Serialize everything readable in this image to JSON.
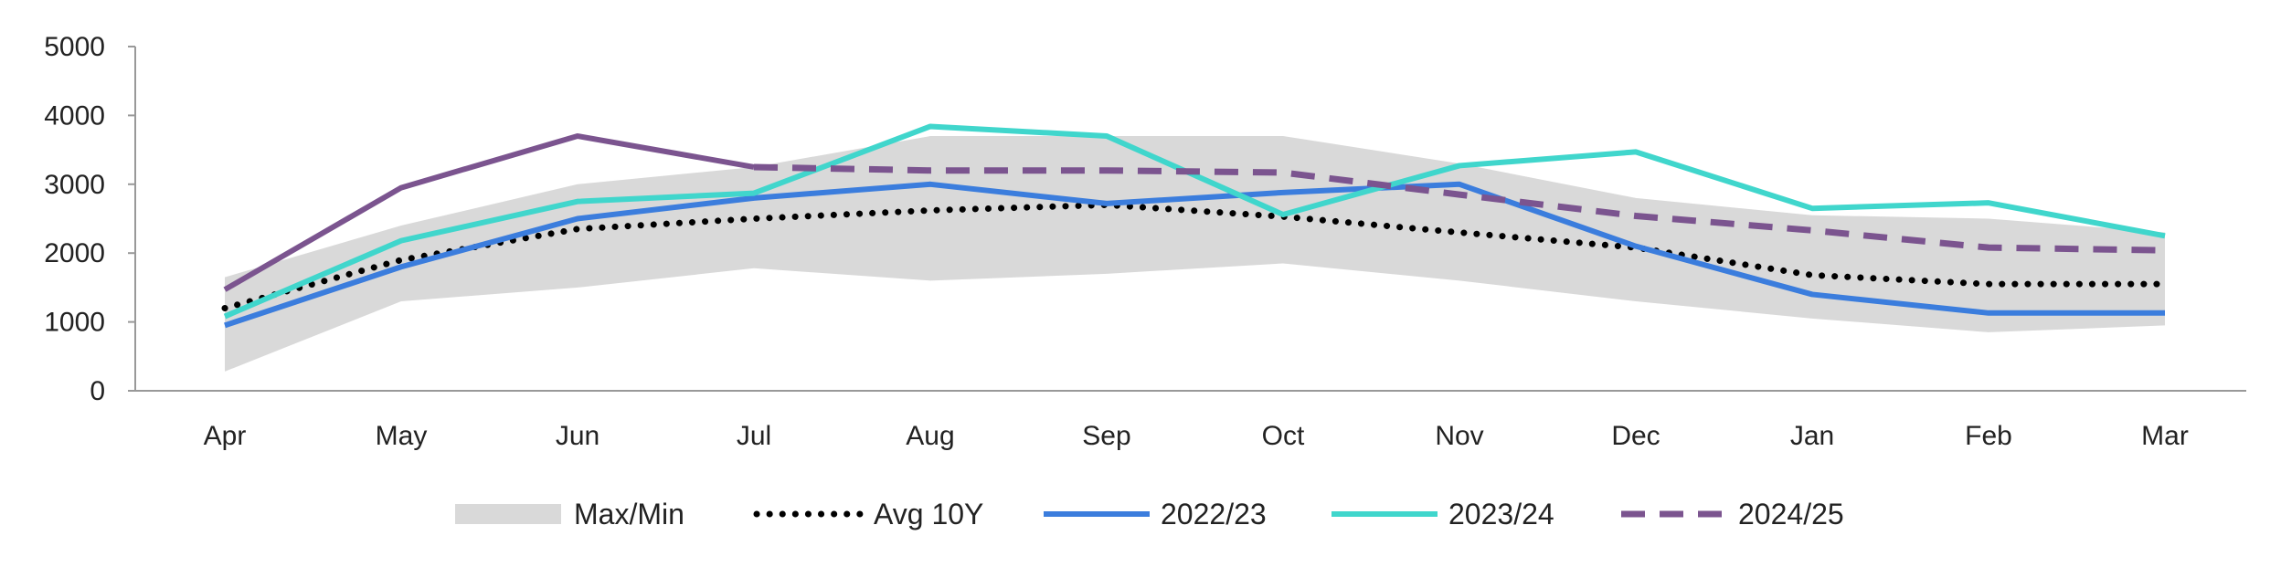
{
  "chart_data": {
    "type": "line",
    "categories": [
      "Apr",
      "May",
      "Jun",
      "Jul",
      "Aug",
      "Sep",
      "Oct",
      "Nov",
      "Dec",
      "Jan",
      "Feb",
      "Mar"
    ],
    "ylim": [
      0,
      5000
    ],
    "yticks": [
      0,
      1000,
      2000,
      3000,
      4000,
      5000
    ],
    "band": {
      "name": "Max/Min",
      "color": "#d9d9d9",
      "max": [
        1650,
        2400,
        3000,
        3250,
        3700,
        3700,
        3700,
        3300,
        2800,
        2550,
        2500,
        2300
      ],
      "min": [
        280,
        1300,
        1500,
        1780,
        1600,
        1700,
        1850,
        1600,
        1300,
        1050,
        850,
        950
      ]
    },
    "series": [
      {
        "name": "Avg 10Y",
        "color": "#000000",
        "style": "dotted",
        "values": [
          1200,
          1900,
          2350,
          2500,
          2620,
          2700,
          2530,
          2300,
          2080,
          1680,
          1550,
          1550
        ]
      },
      {
        "name": "2022/23",
        "color": "#3b7ddd",
        "style": "solid",
        "values": [
          950,
          1800,
          2500,
          2800,
          3000,
          2720,
          2880,
          3000,
          2100,
          1400,
          1130,
          1130
        ]
      },
      {
        "name": "2023/24",
        "color": "#40d6cc",
        "style": "solid",
        "values": [
          1080,
          2180,
          2750,
          2870,
          3840,
          3700,
          2560,
          3270,
          3470,
          2650,
          2730,
          2250
        ]
      },
      {
        "name": "2024/25 (line)",
        "legend": false,
        "color": "#7b548f",
        "style": "solid",
        "values": [
          1470,
          2950,
          3700,
          3250,
          null,
          null,
          null,
          null,
          null,
          null,
          null,
          null
        ]
      },
      {
        "name": "2024/25",
        "color": "#7b548f",
        "style": "dashed",
        "values": [
          null,
          null,
          null,
          3250,
          3200,
          3200,
          3170,
          2850,
          2540,
          2330,
          2080,
          2040
        ]
      }
    ],
    "legend": [
      "Max/Min",
      "Avg 10Y",
      "2022/23",
      "2023/24",
      "2024/25"
    ],
    "grid": false,
    "legend_position": "bottom"
  }
}
